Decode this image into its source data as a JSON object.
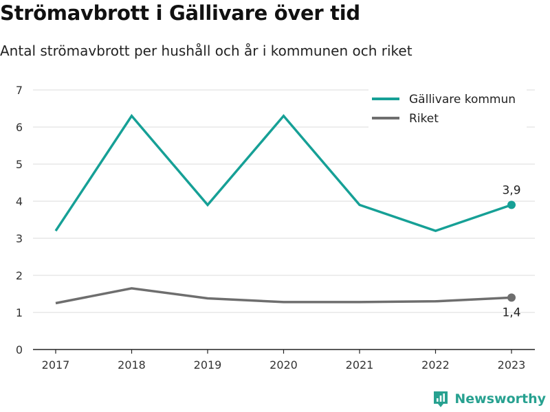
{
  "title": "Strömavbrott i Gällivare över tid",
  "subtitle": "Antal strömavbrott per hushåll och år i kommunen och riket",
  "brand": "Newsworthy",
  "colors": {
    "teal": "#16a096",
    "gray": "#6e6e6e",
    "brand": "#27a190"
  },
  "chart_data": {
    "type": "line",
    "x": [
      "2017",
      "2018",
      "2019",
      "2020",
      "2021",
      "2022",
      "2023"
    ],
    "ylim": [
      0,
      7
    ],
    "yticks": [
      0,
      1,
      2,
      3,
      4,
      5,
      6,
      7
    ],
    "grid": true,
    "legend_position": "top-right",
    "series": [
      {
        "name": "Gällivare kommun",
        "color": "#16a096",
        "values": [
          3.2,
          6.3,
          3.9,
          6.3,
          3.9,
          3.2,
          3.9
        ],
        "end_label": "3,9"
      },
      {
        "name": "Riket",
        "color": "#6e6e6e",
        "values": [
          1.25,
          1.65,
          1.38,
          1.28,
          1.28,
          1.3,
          1.4
        ],
        "end_label": "1,4"
      }
    ]
  }
}
